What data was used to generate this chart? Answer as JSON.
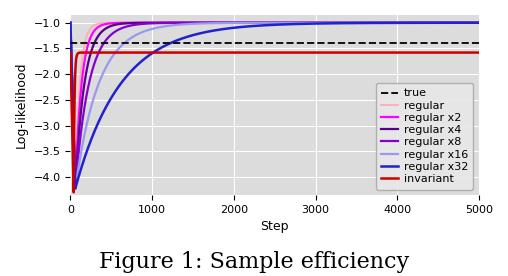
{
  "title": "Figure 1: Sample efficiency",
  "xlabel": "Step",
  "ylabel": "Log-likelihood",
  "xlim": [
    0,
    5000
  ],
  "ylim": [
    -4.35,
    -0.85
  ],
  "true_y": -1.4,
  "background_color": "#dcdcdc",
  "series": [
    {
      "name": "true",
      "color": "#111111",
      "linestyle": "--",
      "linewidth": 1.4,
      "type": "hline",
      "y": -1.4
    },
    {
      "name": "regular",
      "color": "#ffb0b0",
      "linestyle": "-",
      "linewidth": 1.4,
      "type": "curve",
      "y0": -1.0,
      "dip": -4.22,
      "dip_step": 60,
      "converge_y": -1.0,
      "rate": 0.018
    },
    {
      "name": "regular x2",
      "color": "#ff00ff",
      "linestyle": "-",
      "linewidth": 1.6,
      "type": "curve",
      "y0": -1.0,
      "dip": -4.22,
      "dip_step": 60,
      "converge_y": -1.0,
      "rate": 0.013
    },
    {
      "name": "regular x4",
      "color": "#550088",
      "linestyle": "-",
      "linewidth": 1.6,
      "type": "curve",
      "y0": -1.0,
      "dip": -4.22,
      "dip_step": 60,
      "converge_y": -1.0,
      "rate": 0.009
    },
    {
      "name": "regular x8",
      "color": "#8800cc",
      "linestyle": "-",
      "linewidth": 1.6,
      "type": "curve",
      "y0": -1.0,
      "dip": -4.22,
      "dip_step": 60,
      "converge_y": -1.0,
      "rate": 0.006
    },
    {
      "name": "regular x16",
      "color": "#9999ee",
      "linestyle": "-",
      "linewidth": 1.6,
      "type": "curve",
      "y0": -1.0,
      "dip": -4.22,
      "dip_step": 60,
      "converge_y": -1.0,
      "rate": 0.0035
    },
    {
      "name": "regular x32",
      "color": "#2222cc",
      "linestyle": "-",
      "linewidth": 1.8,
      "type": "curve",
      "y0": -1.0,
      "dip": -4.22,
      "dip_step": 60,
      "converge_y": -1.0,
      "rate": 0.0018
    },
    {
      "name": "invariant",
      "color": "#cc0000",
      "linestyle": "-",
      "linewidth": 1.8,
      "type": "curve",
      "y0": -1.58,
      "dip": -4.3,
      "dip_step": 40,
      "converge_y": -1.58,
      "rate": 0.1
    }
  ],
  "legend_loc": "lower right",
  "yticks": [
    -1.0,
    -1.5,
    -2.0,
    -2.5,
    -3.0,
    -3.5,
    -4.0
  ],
  "xticks": [
    0,
    1000,
    2000,
    3000,
    4000,
    5000
  ],
  "title_fontsize": 16,
  "axis_fontsize": 9,
  "tick_fontsize": 8,
  "legend_fontsize": 8
}
